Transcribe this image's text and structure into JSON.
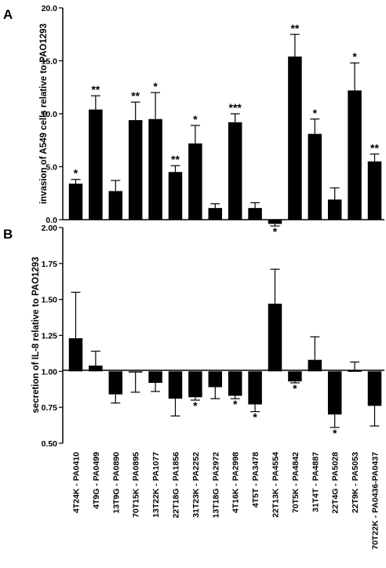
{
  "categories": [
    "4T24K - PA0410",
    "4T9G - PA0499",
    "13T9G - PA0890",
    "70T15K - PA0895",
    "13T22K - PA1077",
    "22T18G - PA1856",
    "31T23K - PA2252",
    "13T18G - PA2972",
    "4T16K - PA2998",
    "4T5T - PA3478",
    "22T13K - PA4554",
    "70T5K - PA4842",
    "31T4T - PA4887",
    "22T4G - PA5028",
    "22T9K - PA5053",
    "70T22K - PA0436-PA0437"
  ],
  "chart_data": [
    {
      "type": "bar",
      "panel_label": "A",
      "ylabel": "invasion of A549 cells relative to PAO1293",
      "ylim": [
        0,
        20
      ],
      "yticks": [
        "0.0",
        "5.0",
        "10.0",
        "15.0",
        "20.0"
      ],
      "baseline": 0,
      "values": [
        3.4,
        10.4,
        2.7,
        9.4,
        9.5,
        4.5,
        7.2,
        1.1,
        9.2,
        1.1,
        -0.4,
        15.4,
        8.1,
        1.9,
        12.2,
        5.5
      ],
      "errors": [
        0.4,
        1.3,
        1.0,
        1.7,
        2.5,
        0.6,
        1.7,
        0.4,
        0.8,
        0.5,
        0.2,
        2.1,
        1.4,
        1.1,
        2.6,
        0.7
      ],
      "significance": [
        "*",
        "**",
        "",
        "**",
        "*",
        "**",
        "*",
        "",
        "***",
        "",
        "*",
        "**",
        "*",
        "",
        "*",
        "**"
      ]
    },
    {
      "type": "bar",
      "panel_label": "B",
      "ylabel": "secretion of IL-8 relative to PAO1293",
      "ylim": [
        0.5,
        2.0
      ],
      "yticks": [
        "0.50",
        "0.75",
        "1.00",
        "1.25",
        "1.50",
        "1.75",
        "2.00"
      ],
      "baseline": 1.0,
      "values": [
        1.23,
        1.04,
        0.84,
        0.995,
        0.92,
        0.81,
        0.82,
        0.89,
        0.83,
        0.77,
        1.47,
        0.93,
        1.08,
        0.7,
        1.005,
        0.76
      ],
      "errors": [
        0.32,
        0.1,
        0.06,
        0.14,
        0.06,
        0.12,
        0.02,
        0.08,
        0.02,
        0.05,
        0.24,
        0.01,
        0.16,
        0.09,
        0.06,
        0.14
      ],
      "significance": [
        "",
        "",
        "",
        "",
        "",
        "",
        "*",
        "",
        "*",
        "*",
        "",
        "*",
        "",
        "*",
        "",
        ""
      ]
    }
  ]
}
